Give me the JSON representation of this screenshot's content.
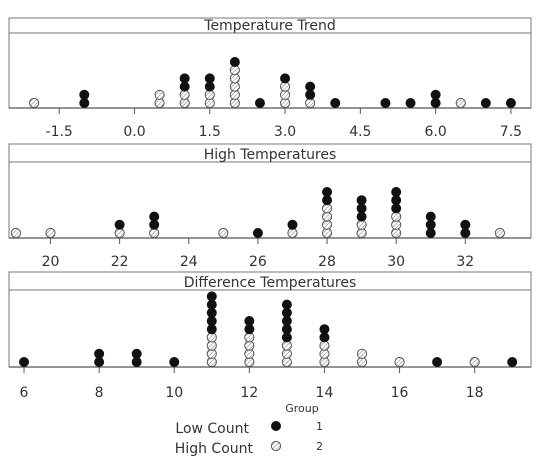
{
  "colors": {
    "background": "#ffffff",
    "axis": "#555555",
    "frame": "#777777",
    "text": "#333333",
    "group1_fill": "#111111",
    "group2_fill": "#ffffff",
    "group2_stroke": "#555555",
    "group2_hatch": "#777777"
  },
  "legend": {
    "title": "Group",
    "entries": [
      {
        "label": "Low Count",
        "group": "1"
      },
      {
        "label": "High Count",
        "group": "2"
      }
    ]
  },
  "chart_data": [
    {
      "type": "dotplot",
      "title": "Temperature Trend",
      "xlim": [
        -2.5,
        7.9
      ],
      "ticks": [
        "-1.5",
        "0.0",
        "1.5",
        "3.0",
        "4.5",
        "6.0",
        "7.5"
      ],
      "series": [
        {
          "name": "1",
          "points": [
            [
              -1.0,
              2
            ],
            [
              1.0,
              2
            ],
            [
              1.5,
              2
            ],
            [
              2.0,
              1
            ],
            [
              2.5,
              1
            ],
            [
              3.0,
              1
            ],
            [
              3.5,
              2
            ],
            [
              4.0,
              1
            ],
            [
              5.0,
              1
            ],
            [
              5.5,
              1
            ],
            [
              6.0,
              2
            ],
            [
              7.0,
              1
            ],
            [
              7.5,
              1
            ]
          ]
        },
        {
          "name": "2",
          "points": [
            [
              -2.0,
              1
            ],
            [
              0.5,
              2
            ],
            [
              1.0,
              2
            ],
            [
              1.5,
              2
            ],
            [
              2.0,
              5
            ],
            [
              3.0,
              3
            ],
            [
              3.5,
              1
            ],
            [
              6.5,
              1
            ]
          ]
        }
      ]
    },
    {
      "type": "dotplot",
      "title": "High Temperatures",
      "xlim": [
        18.8,
        33.9
      ],
      "ticks": [
        "20",
        "22",
        "24",
        "26",
        "28",
        "30",
        "32"
      ],
      "series": [
        {
          "name": "1",
          "points": [
            [
              22,
              1
            ],
            [
              23,
              2
            ],
            [
              26,
              1
            ],
            [
              27,
              1
            ],
            [
              28,
              2
            ],
            [
              29,
              3
            ],
            [
              30,
              3
            ],
            [
              31,
              3
            ],
            [
              32,
              2
            ]
          ]
        },
        {
          "name": "2",
          "points": [
            [
              19,
              1
            ],
            [
              20,
              1
            ],
            [
              22,
              1
            ],
            [
              23,
              1
            ],
            [
              25,
              1
            ],
            [
              27,
              1
            ],
            [
              28,
              4
            ],
            [
              29,
              2
            ],
            [
              30,
              3
            ],
            [
              33,
              1
            ]
          ]
        }
      ]
    },
    {
      "type": "dotplot",
      "title": "Difference Temperatures",
      "xlim": [
        5.6,
        19.5
      ],
      "ticks": [
        "6",
        "8",
        "10",
        "12",
        "14",
        "16",
        "18"
      ],
      "series": [
        {
          "name": "1",
          "points": [
            [
              6,
              1
            ],
            [
              8,
              2
            ],
            [
              9,
              2
            ],
            [
              10,
              1
            ],
            [
              11,
              5
            ],
            [
              12,
              2
            ],
            [
              13,
              5
            ],
            [
              14,
              2
            ],
            [
              17,
              1
            ],
            [
              19,
              1
            ]
          ]
        },
        {
          "name": "2",
          "points": [
            [
              11,
              4
            ],
            [
              12,
              4
            ],
            [
              13,
              3
            ],
            [
              14,
              3
            ],
            [
              15,
              2
            ],
            [
              16,
              1
            ],
            [
              18,
              1
            ]
          ]
        }
      ]
    }
  ]
}
